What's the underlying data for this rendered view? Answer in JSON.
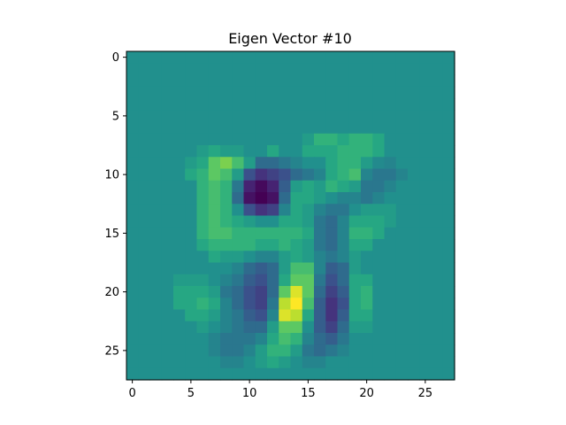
{
  "chart_data": {
    "type": "heatmap",
    "title": "Eigen Vector #10",
    "xlabel": "",
    "ylabel": "",
    "rows": 28,
    "cols": 28,
    "xlim": [
      -0.5,
      27.5
    ],
    "ylim": [
      27.5,
      -0.5
    ],
    "xticks": [
      0,
      5,
      10,
      15,
      20,
      25
    ],
    "yticks": [
      0,
      5,
      10,
      15,
      20,
      25
    ],
    "xtick_labels": [
      "0",
      "5",
      "10",
      "15",
      "20",
      "25"
    ],
    "ytick_labels": [
      "0",
      "5",
      "10",
      "15",
      "20",
      "25"
    ],
    "colormap": "viridis",
    "value_range": [
      -1,
      1
    ],
    "grid": false,
    "legend": "none",
    "sparse_cells": [
      [
        7,
        15,
        0.1
      ],
      [
        7,
        16,
        0.3
      ],
      [
        7,
        17,
        0.3
      ],
      [
        7,
        18,
        0.2
      ],
      [
        7,
        19,
        0.3
      ],
      [
        7,
        20,
        0.3
      ],
      [
        7,
        21,
        0.2
      ],
      [
        8,
        6,
        0.1
      ],
      [
        8,
        7,
        0.2
      ],
      [
        8,
        8,
        0.1
      ],
      [
        8,
        9,
        0.1
      ],
      [
        8,
        12,
        0.2
      ],
      [
        8,
        15,
        0.2
      ],
      [
        8,
        16,
        0.2
      ],
      [
        8,
        17,
        0.2
      ],
      [
        8,
        18,
        0.3
      ],
      [
        8,
        19,
        0.3
      ],
      [
        8,
        20,
        0.3
      ],
      [
        8,
        21,
        0.2
      ],
      [
        9,
        5,
        0.1
      ],
      [
        9,
        6,
        0.2
      ],
      [
        9,
        7,
        0.5
      ],
      [
        9,
        8,
        0.6
      ],
      [
        9,
        9,
        0.4
      ],
      [
        9,
        10,
        0.1
      ],
      [
        9,
        11,
        -0.3
      ],
      [
        9,
        12,
        -0.3
      ],
      [
        9,
        13,
        -0.2
      ],
      [
        9,
        14,
        -0.1
      ],
      [
        9,
        17,
        0.2
      ],
      [
        9,
        18,
        0.3
      ],
      [
        9,
        19,
        0.3
      ],
      [
        9,
        20,
        0.1
      ],
      [
        9,
        21,
        -0.05
      ],
      [
        9,
        22,
        -0.1
      ],
      [
        10,
        5,
        0.2
      ],
      [
        10,
        6,
        0.3
      ],
      [
        10,
        7,
        0.5
      ],
      [
        10,
        8,
        0.4
      ],
      [
        10,
        9,
        0.1
      ],
      [
        10,
        10,
        -0.5
      ],
      [
        10,
        11,
        -0.7
      ],
      [
        10,
        12,
        -0.6
      ],
      [
        10,
        13,
        -0.5
      ],
      [
        10,
        14,
        -0.3
      ],
      [
        10,
        15,
        -0.2
      ],
      [
        10,
        16,
        -0.1
      ],
      [
        10,
        17,
        0.2
      ],
      [
        10,
        18,
        0.3
      ],
      [
        10,
        19,
        0.4
      ],
      [
        10,
        20,
        -0.1
      ],
      [
        10,
        21,
        -0.2
      ],
      [
        10,
        22,
        -0.2
      ],
      [
        10,
        23,
        -0.1
      ],
      [
        11,
        6,
        0.3
      ],
      [
        11,
        7,
        0.4
      ],
      [
        11,
        8,
        0.3
      ],
      [
        11,
        9,
        -0.2
      ],
      [
        11,
        10,
        -0.8
      ],
      [
        11,
        11,
        -0.95
      ],
      [
        11,
        12,
        -0.8
      ],
      [
        11,
        13,
        -0.4
      ],
      [
        11,
        14,
        0.1
      ],
      [
        11,
        15,
        0.2
      ],
      [
        11,
        16,
        0.1
      ],
      [
        11,
        17,
        0.3
      ],
      [
        11,
        18,
        0.2
      ],
      [
        11,
        19,
        0.1
      ],
      [
        11,
        20,
        -0.2
      ],
      [
        11,
        21,
        -0.2
      ],
      [
        11,
        22,
        -0.1
      ],
      [
        12,
        6,
        0.3
      ],
      [
        12,
        7,
        0.4
      ],
      [
        12,
        8,
        0.3
      ],
      [
        12,
        9,
        -0.3
      ],
      [
        12,
        10,
        -0.9
      ],
      [
        12,
        11,
        -1.0
      ],
      [
        12,
        12,
        -0.9
      ],
      [
        12,
        13,
        -0.3
      ],
      [
        12,
        14,
        0.2
      ],
      [
        12,
        15,
        0.2
      ],
      [
        12,
        16,
        0.1
      ],
      [
        12,
        17,
        0.0
      ],
      [
        12,
        18,
        -0.1
      ],
      [
        12,
        19,
        -0.1
      ],
      [
        12,
        20,
        -0.2
      ],
      [
        12,
        21,
        -0.1
      ],
      [
        13,
        6,
        0.3
      ],
      [
        13,
        7,
        0.4
      ],
      [
        13,
        8,
        0.3
      ],
      [
        13,
        9,
        0.0
      ],
      [
        13,
        10,
        -0.5
      ],
      [
        13,
        11,
        -0.7
      ],
      [
        13,
        12,
        -0.6
      ],
      [
        13,
        13,
        -0.1
      ],
      [
        13,
        14,
        0.2
      ],
      [
        13,
        15,
        0.1
      ],
      [
        13,
        16,
        -0.1
      ],
      [
        13,
        17,
        -0.2
      ],
      [
        13,
        18,
        -0.2
      ],
      [
        13,
        19,
        0.0
      ],
      [
        13,
        20,
        0.1
      ],
      [
        13,
        21,
        0.1
      ],
      [
        13,
        22,
        0.1
      ],
      [
        14,
        6,
        0.3
      ],
      [
        14,
        7,
        0.4
      ],
      [
        14,
        8,
        0.3
      ],
      [
        14,
        9,
        0.2
      ],
      [
        14,
        10,
        0.1
      ],
      [
        14,
        11,
        0.0
      ],
      [
        14,
        12,
        0.0
      ],
      [
        14,
        13,
        0.2
      ],
      [
        14,
        14,
        0.2
      ],
      [
        14,
        15,
        0.1
      ],
      [
        14,
        16,
        -0.2
      ],
      [
        14,
        17,
        -0.3
      ],
      [
        14,
        18,
        -0.1
      ],
      [
        14,
        19,
        0.2
      ],
      [
        14,
        20,
        0.2
      ],
      [
        14,
        21,
        0.2
      ],
      [
        14,
        22,
        0.1
      ],
      [
        15,
        6,
        0.3
      ],
      [
        15,
        7,
        0.4
      ],
      [
        15,
        8,
        0.4
      ],
      [
        15,
        9,
        0.3
      ],
      [
        15,
        10,
        0.3
      ],
      [
        15,
        11,
        0.3
      ],
      [
        15,
        12,
        0.3
      ],
      [
        15,
        13,
        0.3
      ],
      [
        15,
        14,
        0.3
      ],
      [
        15,
        15,
        0.2
      ],
      [
        15,
        16,
        -0.2
      ],
      [
        15,
        17,
        -0.3
      ],
      [
        15,
        18,
        -0.1
      ],
      [
        15,
        19,
        0.3
      ],
      [
        15,
        20,
        0.3
      ],
      [
        15,
        21,
        0.2
      ],
      [
        16,
        6,
        0.2
      ],
      [
        16,
        7,
        0.3
      ],
      [
        16,
        8,
        0.3
      ],
      [
        16,
        9,
        0.3
      ],
      [
        16,
        10,
        0.3
      ],
      [
        16,
        11,
        0.2
      ],
      [
        16,
        12,
        0.2
      ],
      [
        16,
        13,
        0.3
      ],
      [
        16,
        14,
        0.2
      ],
      [
        16,
        15,
        0.1
      ],
      [
        16,
        16,
        -0.2
      ],
      [
        16,
        17,
        -0.3
      ],
      [
        16,
        18,
        -0.1
      ],
      [
        16,
        19,
        0.2
      ],
      [
        16,
        20,
        0.2
      ],
      [
        17,
        7,
        0.2
      ],
      [
        17,
        8,
        0.1
      ],
      [
        17,
        9,
        0.1
      ],
      [
        17,
        10,
        0.0
      ],
      [
        17,
        11,
        -0.1
      ],
      [
        17,
        12,
        -0.1
      ],
      [
        17,
        13,
        0.1
      ],
      [
        17,
        14,
        0.2
      ],
      [
        17,
        15,
        0.1
      ],
      [
        17,
        16,
        -0.1
      ],
      [
        17,
        17,
        -0.2
      ],
      [
        17,
        18,
        -0.1
      ],
      [
        17,
        19,
        0.1
      ],
      [
        18,
        9,
        -0.1
      ],
      [
        18,
        10,
        -0.3
      ],
      [
        18,
        11,
        -0.4
      ],
      [
        18,
        12,
        -0.3
      ],
      [
        18,
        13,
        0.1
      ],
      [
        18,
        14,
        0.4
      ],
      [
        18,
        15,
        0.4
      ],
      [
        18,
        16,
        -0.1
      ],
      [
        18,
        17,
        -0.4
      ],
      [
        18,
        18,
        -0.3
      ],
      [
        18,
        19,
        0.1
      ],
      [
        19,
        4,
        0.1
      ],
      [
        19,
        5,
        0.1
      ],
      [
        19,
        6,
        0.1
      ],
      [
        19,
        8,
        -0.1
      ],
      [
        19,
        9,
        -0.2
      ],
      [
        19,
        10,
        -0.4
      ],
      [
        19,
        11,
        -0.5
      ],
      [
        19,
        12,
        -0.3
      ],
      [
        19,
        13,
        0.2
      ],
      [
        19,
        14,
        0.5
      ],
      [
        19,
        15,
        0.5
      ],
      [
        19,
        16,
        -0.2
      ],
      [
        19,
        17,
        -0.5
      ],
      [
        19,
        18,
        -0.3
      ],
      [
        19,
        19,
        0.2
      ],
      [
        19,
        20,
        0.2
      ],
      [
        20,
        4,
        0.2
      ],
      [
        20,
        5,
        0.2
      ],
      [
        20,
        6,
        0.2
      ],
      [
        20,
        7,
        0.1
      ],
      [
        20,
        8,
        -0.2
      ],
      [
        20,
        9,
        -0.3
      ],
      [
        20,
        10,
        -0.5
      ],
      [
        20,
        11,
        -0.6
      ],
      [
        20,
        12,
        -0.3
      ],
      [
        20,
        13,
        0.5
      ],
      [
        20,
        14,
        0.9
      ],
      [
        20,
        15,
        0.5
      ],
      [
        20,
        16,
        -0.3
      ],
      [
        20,
        17,
        -0.6
      ],
      [
        20,
        18,
        -0.4
      ],
      [
        20,
        19,
        0.2
      ],
      [
        20,
        20,
        0.3
      ],
      [
        21,
        4,
        0.2
      ],
      [
        21,
        5,
        0.2
      ],
      [
        21,
        6,
        0.3
      ],
      [
        21,
        7,
        0.2
      ],
      [
        21,
        8,
        -0.1
      ],
      [
        21,
        9,
        -0.3
      ],
      [
        21,
        10,
        -0.5
      ],
      [
        21,
        11,
        -0.6
      ],
      [
        21,
        12,
        -0.2
      ],
      [
        21,
        13,
        0.8
      ],
      [
        21,
        14,
        1.0
      ],
      [
        21,
        15,
        0.4
      ],
      [
        21,
        16,
        -0.4
      ],
      [
        21,
        17,
        -0.7
      ],
      [
        21,
        18,
        -0.5
      ],
      [
        21,
        19,
        0.2
      ],
      [
        21,
        20,
        0.3
      ],
      [
        22,
        5,
        0.2
      ],
      [
        22,
        6,
        0.2
      ],
      [
        22,
        7,
        0.1
      ],
      [
        22,
        8,
        -0.1
      ],
      [
        22,
        9,
        -0.2
      ],
      [
        22,
        10,
        -0.4
      ],
      [
        22,
        11,
        -0.5
      ],
      [
        22,
        12,
        -0.1
      ],
      [
        22,
        13,
        0.9
      ],
      [
        22,
        14,
        0.8
      ],
      [
        22,
        15,
        0.2
      ],
      [
        22,
        16,
        -0.4
      ],
      [
        22,
        17,
        -0.7
      ],
      [
        22,
        18,
        -0.4
      ],
      [
        22,
        19,
        0.2
      ],
      [
        22,
        20,
        0.2
      ],
      [
        23,
        6,
        0.1
      ],
      [
        23,
        8,
        -0.1
      ],
      [
        23,
        9,
        -0.2
      ],
      [
        23,
        10,
        -0.3
      ],
      [
        23,
        11,
        -0.3
      ],
      [
        23,
        12,
        0.1
      ],
      [
        23,
        13,
        0.5
      ],
      [
        23,
        14,
        0.5
      ],
      [
        23,
        15,
        0.0
      ],
      [
        23,
        16,
        -0.4
      ],
      [
        23,
        17,
        -0.6
      ],
      [
        23,
        18,
        -0.3
      ],
      [
        23,
        19,
        0.1
      ],
      [
        23,
        20,
        0.1
      ],
      [
        24,
        7,
        -0.1
      ],
      [
        24,
        8,
        -0.2
      ],
      [
        24,
        9,
        -0.2
      ],
      [
        24,
        10,
        -0.2
      ],
      [
        24,
        11,
        -0.1
      ],
      [
        24,
        12,
        0.2
      ],
      [
        24,
        13,
        0.4
      ],
      [
        24,
        14,
        0.3
      ],
      [
        24,
        15,
        -0.1
      ],
      [
        24,
        16,
        -0.3
      ],
      [
        24,
        17,
        -0.4
      ],
      [
        24,
        18,
        -0.2
      ],
      [
        25,
        7,
        -0.1
      ],
      [
        25,
        8,
        -0.2
      ],
      [
        25,
        9,
        -0.2
      ],
      [
        25,
        10,
        -0.1
      ],
      [
        25,
        11,
        0.1
      ],
      [
        25,
        12,
        0.3
      ],
      [
        25,
        13,
        0.3
      ],
      [
        25,
        14,
        0.1
      ],
      [
        25,
        15,
        -0.2
      ],
      [
        25,
        16,
        -0.3
      ],
      [
        25,
        17,
        -0.2
      ],
      [
        25,
        18,
        -0.1
      ],
      [
        26,
        8,
        -0.1
      ],
      [
        26,
        9,
        -0.1
      ],
      [
        26,
        11,
        0.1
      ],
      [
        26,
        12,
        0.2
      ],
      [
        26,
        13,
        0.1
      ],
      [
        26,
        15,
        -0.1
      ],
      [
        26,
        16,
        -0.1
      ]
    ]
  }
}
